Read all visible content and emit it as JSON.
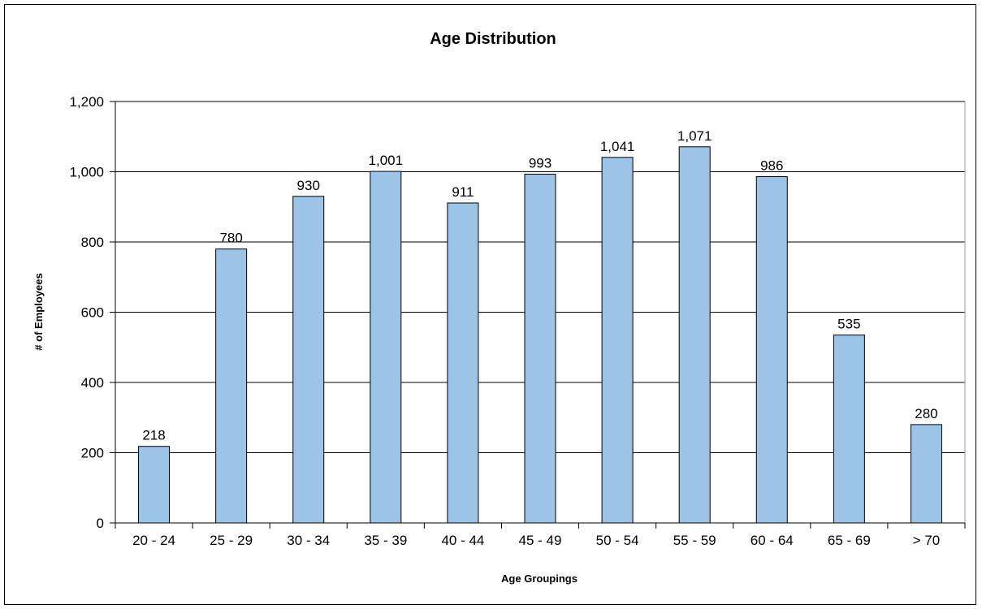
{
  "chart_data": {
    "type": "bar",
    "title": "Age Distribution",
    "xlabel": "Age Groupings",
    "ylabel": "# of Employees",
    "categories": [
      "20 - 24",
      "25 - 29",
      "30 - 34",
      "35 - 39",
      "40 - 44",
      "45 - 49",
      "50 - 54",
      "55 - 59",
      "60 - 64",
      "65 - 69",
      "> 70"
    ],
    "values": [
      218,
      780,
      930,
      1001,
      911,
      993,
      1041,
      1071,
      986,
      535,
      280
    ],
    "data_labels": [
      "218",
      "780",
      "930",
      "1,001",
      "911",
      "993",
      "1,041",
      "1,071",
      "986",
      "535",
      "280"
    ],
    "ylim": [
      0,
      1200
    ],
    "yticks": [
      0,
      200,
      400,
      600,
      800,
      1000,
      1200
    ],
    "ytick_labels": [
      "0",
      "200",
      "400",
      "600",
      "800",
      "1,000",
      "1,200"
    ],
    "grid": true,
    "legend": "none",
    "colors": {
      "bar_fill": "#9DC3E6",
      "bar_stroke": "#000000",
      "grid": "#000000",
      "background": "#FFFFFF"
    }
  }
}
